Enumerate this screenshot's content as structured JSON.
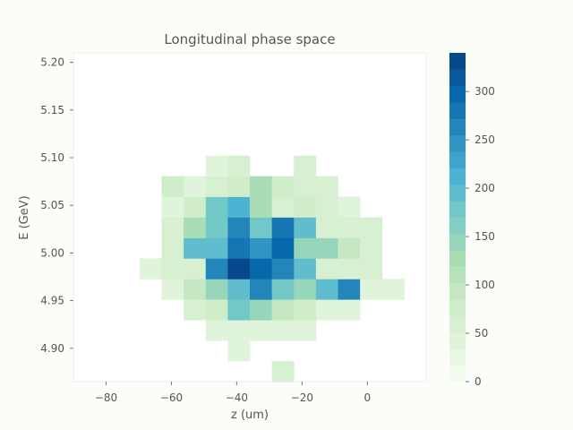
{
  "chart_data": {
    "type": "heatmap",
    "title": "Longitudinal phase space",
    "xlabel": "z (um)",
    "ylabel": "E (GeV)",
    "xlim": [
      -90,
      18
    ],
    "ylim": [
      4.865,
      5.21
    ],
    "xticks": [
      -80,
      -60,
      -40,
      -20,
      0
    ],
    "xtick_labels": [
      "−80",
      "−60",
      "−40",
      "−20",
      "0"
    ],
    "yticks": [
      4.9,
      4.95,
      5.0,
      5.05,
      5.1,
      5.15,
      5.2
    ],
    "ytick_labels": [
      "4.90",
      "4.95",
      "5.00",
      "5.05",
      "5.10",
      "5.15",
      "5.20"
    ],
    "x_bin_edges": [
      -90,
      -83.25,
      -76.5,
      -69.75,
      -63,
      -56.25,
      -49.5,
      -42.75,
      -36,
      -29.25,
      -22.5,
      -15.75,
      -9,
      -2.25,
      4.5,
      11.25,
      18
    ],
    "y_bin_edges": [
      4.865,
      4.8866,
      4.9081,
      4.9297,
      4.9513,
      4.9728,
      4.9944,
      5.0159,
      5.0375,
      5.0591,
      5.0806,
      5.1022,
      5.1238,
      5.1453,
      5.1669,
      5.1884,
      5.21
    ],
    "counts": [
      [
        0,
        0,
        0,
        0,
        0,
        0,
        0,
        0,
        0,
        60,
        0,
        0,
        0,
        0,
        0,
        0
      ],
      [
        0,
        0,
        0,
        0,
        0,
        0,
        0,
        40,
        0,
        0,
        0,
        0,
        0,
        0,
        0,
        0
      ],
      [
        0,
        0,
        0,
        0,
        0,
        0,
        40,
        40,
        40,
        40,
        40,
        0,
        0,
        0,
        0,
        0
      ],
      [
        0,
        0,
        0,
        0,
        0,
        60,
        80,
        180,
        140,
        100,
        80,
        40,
        40,
        0,
        0,
        0
      ],
      [
        0,
        0,
        0,
        0,
        40,
        100,
        140,
        200,
        260,
        180,
        140,
        200,
        260,
        40,
        40,
        0
      ],
      [
        0,
        0,
        0,
        40,
        60,
        60,
        270,
        340,
        300,
        260,
        200,
        60,
        60,
        60,
        0,
        0
      ],
      [
        0,
        0,
        0,
        0,
        60,
        200,
        200,
        280,
        240,
        300,
        140,
        140,
        100,
        60,
        0,
        0
      ],
      [
        0,
        0,
        0,
        0,
        60,
        120,
        180,
        260,
        180,
        280,
        200,
        60,
        60,
        60,
        0,
        0
      ],
      [
        0,
        0,
        0,
        0,
        40,
        80,
        180,
        220,
        120,
        60,
        80,
        60,
        40,
        0,
        0,
        0
      ],
      [
        0,
        0,
        0,
        0,
        80,
        40,
        60,
        80,
        120,
        80,
        60,
        60,
        0,
        0,
        0,
        0
      ],
      [
        0,
        0,
        0,
        0,
        0,
        0,
        40,
        60,
        0,
        0,
        60,
        0,
        0,
        0,
        0,
        0
      ],
      [
        0,
        0,
        0,
        0,
        0,
        0,
        0,
        0,
        0,
        0,
        0,
        0,
        0,
        0,
        0,
        0
      ],
      [
        0,
        0,
        0,
        0,
        0,
        0,
        0,
        0,
        0,
        0,
        0,
        0,
        0,
        0,
        0,
        0
      ],
      [
        0,
        0,
        0,
        0,
        0,
        0,
        0,
        0,
        0,
        0,
        0,
        0,
        0,
        0,
        0,
        0
      ],
      [
        0,
        0,
        0,
        0,
        0,
        0,
        0,
        0,
        0,
        0,
        0,
        0,
        0,
        0,
        0,
        0
      ],
      [
        0,
        0,
        0,
        0,
        0,
        0,
        0,
        0,
        0,
        0,
        0,
        0,
        0,
        0,
        0,
        0
      ]
    ],
    "colorbar": {
      "min": 0,
      "max": 340,
      "levels": 20,
      "ticks": [
        0,
        50,
        100,
        150,
        200,
        250,
        300
      ],
      "tick_labels": [
        "0",
        "50",
        "100",
        "150",
        "200",
        "250",
        "300"
      ],
      "colormap": "GnBu"
    },
    "grid": false
  }
}
